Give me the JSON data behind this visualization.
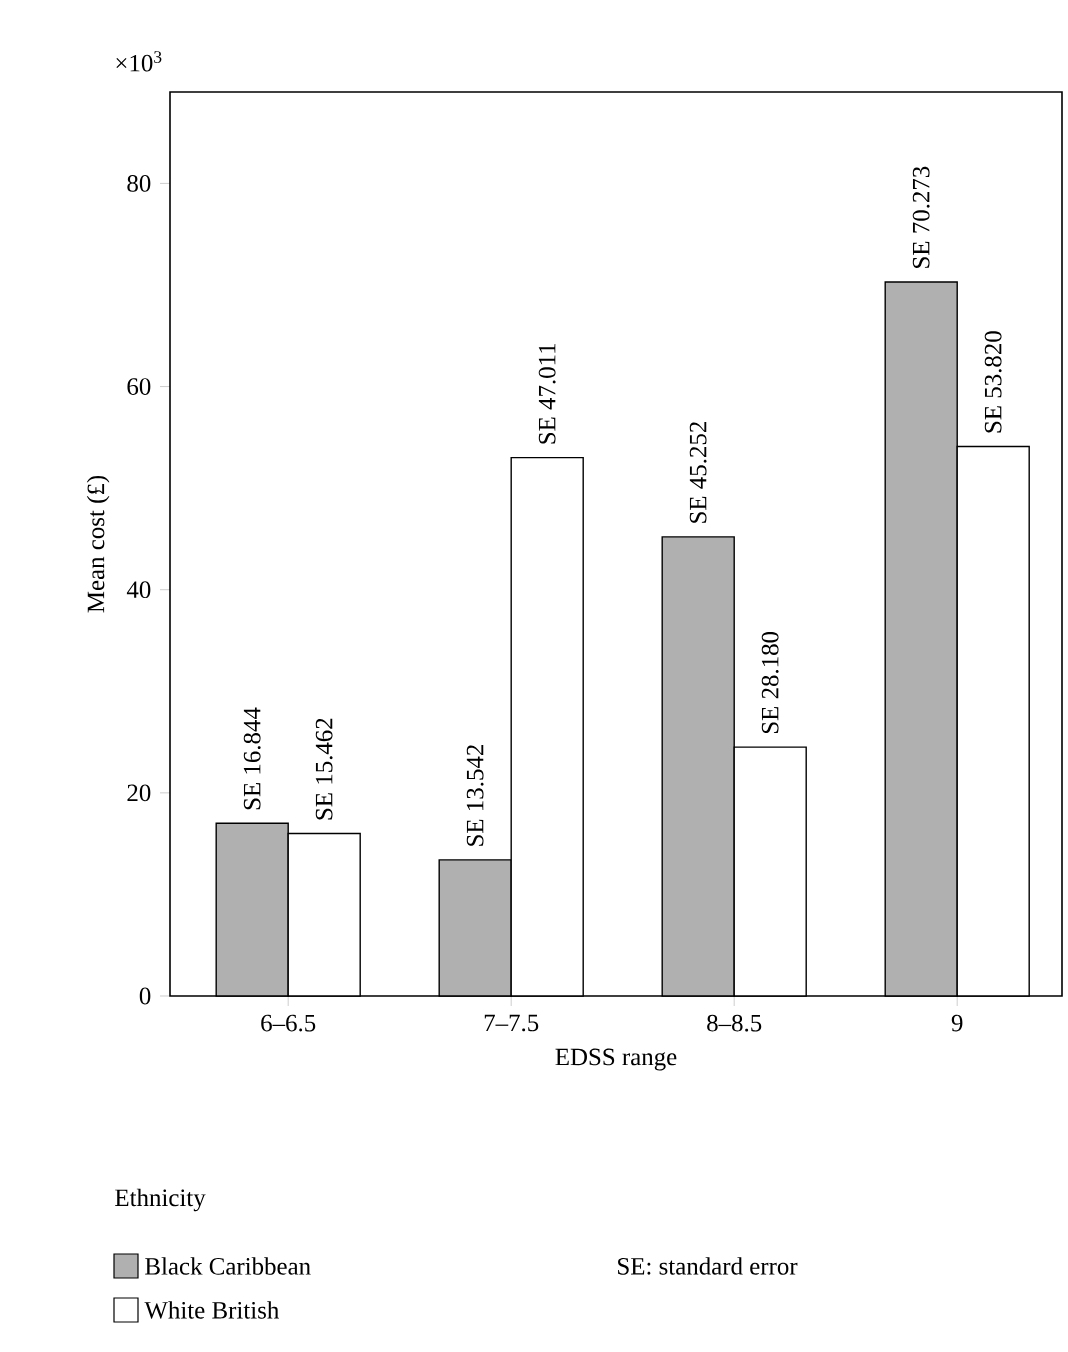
{
  "chart_data": {
    "type": "bar",
    "xlabel": "EDSS range",
    "ylabel": "Mean cost (£)",
    "legend_title": "Ethnicity",
    "annotations": [
      "×10$^{3}$",
      "SE: standard error"
    ],
    "categories": [
      "6–6.5",
      "7–7.5",
      "8–8.5",
      "9"
    ],
    "series": [
      {
        "name": "Black Caribbean",
        "color": "#b0b0b0",
        "values": [
          17.0,
          13.4,
          45.2,
          70.3
        ],
        "value_labels": [
          "SE 16.844",
          "SE 13.542",
          "SE 45.252",
          "SE 70.273"
        ]
      },
      {
        "name": "White British",
        "color": "#ffffff",
        "values": [
          16.0,
          53.0,
          24.5,
          54.1
        ],
        "value_labels": [
          "SE 15.462",
          "SE 47.011",
          "SE 28.180",
          "SE 53.820"
        ]
      }
    ],
    "ylim": [
      0,
      89
    ],
    "yticks": [
      0,
      20,
      40,
      60,
      80
    ],
    "legend": "bottom left"
  }
}
